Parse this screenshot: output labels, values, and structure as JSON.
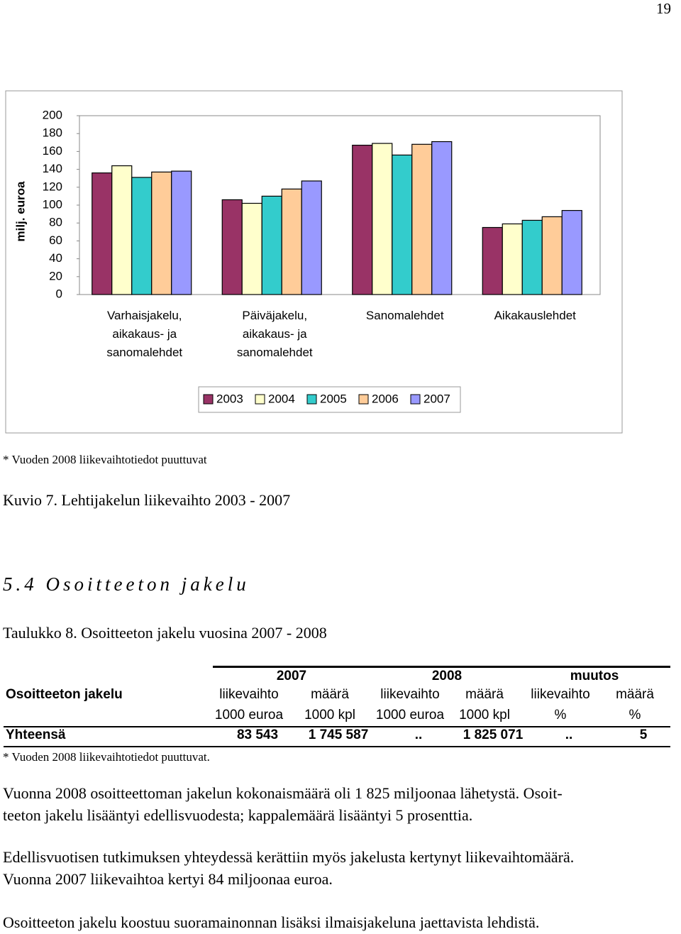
{
  "page_number": "19",
  "chart_data": {
    "type": "bar",
    "ylabel": "milj. euroa",
    "categories": [
      "Varhaisjakelu,\naikakaus- ja\nsanomalehdet",
      "Päiväjakelu,\naikakaus- ja\nsanomalehdet",
      "Sanomalehdet",
      "Aikakauslehdet"
    ],
    "series": [
      {
        "name": "2003",
        "color": "#993366",
        "values": [
          136,
          106,
          167,
          75
        ]
      },
      {
        "name": "2004",
        "color": "#ffffcc",
        "values": [
          144,
          102,
          169,
          79
        ]
      },
      {
        "name": "2005",
        "color": "#33cccc",
        "values": [
          131,
          110,
          156,
          83
        ]
      },
      {
        "name": "2006",
        "color": "#ffcc99",
        "values": [
          137,
          118,
          168,
          87
        ]
      },
      {
        "name": "2007",
        "color": "#9999ff",
        "values": [
          138,
          127,
          171,
          94
        ]
      }
    ],
    "ylim": [
      0,
      200
    ],
    "yticks": [
      0,
      20,
      40,
      60,
      80,
      100,
      120,
      140,
      160,
      180,
      200
    ],
    "grid": false,
    "legend": "bottom"
  },
  "chart_note": "* Vuoden 2008 liikevaihtotiedot puuttuvat",
  "figure_caption": "Kuvio 7. Lehtijakelun liikevaihto 2003 - 2007",
  "section_heading": "5.4 Osoitteeton jakelu",
  "table_caption": "Taulukko 8. Osoitteeton jakelu vuosina 2007 - 2008",
  "table": {
    "groups": [
      "2007",
      "2008",
      "muutos"
    ],
    "row_header": "Osoitteeton jakelu",
    "columns": [
      "liikevaihto",
      "määrä",
      "liikevaihto",
      "määrä",
      "liikevaihto",
      "määrä"
    ],
    "units": [
      "1000 euroa",
      "1000 kpl",
      "1000 euroa",
      "1000 kpl",
      "%",
      "%"
    ],
    "rows": [
      [
        "Yhteensä",
        "83 543",
        "1 745 587",
        "..",
        "1 825 071",
        "..",
        "5"
      ]
    ],
    "note": "* Vuoden 2008 liikevaihtotiedot puuttuvat."
  },
  "paragraphs": [
    [
      "Vuonna 2008 osoitteettoman jakelun kokonaismäärä oli 1 825 miljoonaa lähetystä. Osoit-",
      "teeton jakelu lisääntyi edellisvuodesta; kappalemäärä lisääntyi 5 prosenttia."
    ],
    [
      "Edellisvuotisen tutkimuksen yhteydessä kerättiin myös jakelusta kertynyt liikevaihtomäärä.",
      "Vuonna 2007 liikevaihtoa kertyi 84 miljoonaa euroa."
    ],
    [
      "Osoitteeton jakelu koostuu suoramainonnan lisäksi ilmaisjakeluna jaettavista lehdistä."
    ]
  ]
}
